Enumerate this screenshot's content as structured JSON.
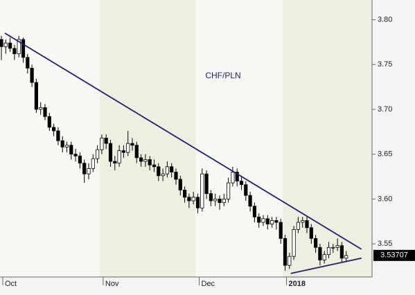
{
  "chart_data": {
    "type": "candlestick",
    "title": "CHF/PLN",
    "categories": [
      "Oct",
      null,
      null,
      null,
      null,
      null,
      null,
      null,
      null,
      null,
      null,
      null,
      null,
      null,
      null,
      null,
      null,
      null,
      null,
      null,
      null,
      null,
      null,
      "Nov",
      null,
      null,
      null,
      null,
      null,
      null,
      null,
      null,
      null,
      null,
      null,
      null,
      null,
      null,
      null,
      null,
      null,
      null,
      null,
      null,
      null,
      "Dec",
      null,
      null,
      null,
      null,
      null,
      null,
      null,
      null,
      null,
      null,
      null,
      null,
      null,
      null,
      null,
      null,
      null,
      null,
      null,
      "2018",
      null,
      null,
      null,
      null,
      null,
      null,
      null,
      null,
      null,
      null,
      null,
      null,
      null,
      null
    ],
    "open": [
      3.778,
      3.77,
      3.774,
      3.768,
      3.762,
      3.778,
      3.758,
      3.746,
      3.73,
      3.7,
      3.702,
      3.692,
      3.68,
      3.676,
      3.665,
      3.658,
      3.66,
      3.65,
      3.648,
      3.64,
      3.628,
      3.634,
      3.645,
      3.655,
      3.668,
      3.662,
      3.642,
      3.64,
      3.654,
      3.652,
      3.662,
      3.66,
      3.646,
      3.642,
      3.644,
      3.638,
      3.636,
      3.626,
      3.628,
      3.636,
      3.63,
      3.622,
      3.61,
      3.602,
      3.598,
      3.602,
      3.59,
      3.628,
      3.606,
      3.598,
      3.6,
      3.596,
      3.6,
      3.618,
      3.63,
      3.62,
      3.616,
      3.604,
      3.592,
      3.58,
      3.574,
      3.578,
      3.572,
      3.576,
      3.574,
      3.556,
      3.526,
      3.536,
      3.566,
      3.574,
      3.576,
      3.568,
      3.556,
      3.546,
      3.532,
      3.538,
      3.546,
      3.546,
      3.548,
      3.534
    ],
    "high": [
      3.782,
      3.778,
      3.78,
      3.772,
      3.782,
      3.78,
      3.762,
      3.75,
      3.734,
      3.708,
      3.706,
      3.696,
      3.684,
      3.68,
      3.67,
      3.664,
      3.664,
      3.656,
      3.652,
      3.644,
      3.64,
      3.65,
      3.66,
      3.672,
      3.672,
      3.666,
      3.648,
      3.66,
      3.66,
      3.676,
      3.668,
      3.664,
      3.65,
      3.65,
      3.648,
      3.644,
      3.64,
      3.634,
      3.642,
      3.64,
      3.634,
      3.626,
      3.614,
      3.606,
      3.608,
      3.606,
      3.634,
      3.632,
      3.61,
      3.606,
      3.604,
      3.606,
      3.624,
      3.636,
      3.634,
      3.626,
      3.62,
      3.608,
      3.596,
      3.584,
      3.582,
      3.582,
      3.58,
      3.58,
      3.578,
      3.56,
      3.54,
      3.57,
      3.58,
      3.58,
      3.58,
      3.572,
      3.56,
      3.55,
      3.542,
      3.552,
      3.55,
      3.556,
      3.552,
      3.542
    ],
    "low": [
      3.755,
      3.762,
      3.764,
      3.755,
      3.758,
      3.752,
      3.74,
      3.725,
      3.696,
      3.694,
      3.688,
      3.676,
      3.67,
      3.66,
      3.652,
      3.652,
      3.644,
      3.642,
      3.634,
      3.618,
      3.622,
      3.63,
      3.64,
      3.65,
      3.656,
      3.636,
      3.632,
      3.636,
      3.646,
      3.648,
      3.654,
      3.64,
      3.636,
      3.636,
      3.632,
      3.63,
      3.62,
      3.62,
      3.624,
      3.624,
      3.616,
      3.604,
      3.596,
      3.59,
      3.594,
      3.584,
      3.586,
      3.6,
      3.592,
      3.592,
      3.588,
      3.592,
      3.596,
      3.614,
      3.614,
      3.61,
      3.598,
      3.586,
      3.574,
      3.568,
      3.57,
      3.566,
      3.568,
      3.566,
      3.55,
      3.52,
      3.522,
      3.532,
      3.562,
      3.568,
      3.562,
      3.55,
      3.54,
      3.526,
      3.528,
      3.534,
      3.54,
      3.542,
      3.53,
      3.53
    ],
    "close": [
      3.77,
      3.774,
      3.768,
      3.762,
      3.778,
      3.758,
      3.746,
      3.73,
      3.7,
      3.702,
      3.692,
      3.68,
      3.676,
      3.665,
      3.658,
      3.66,
      3.65,
      3.648,
      3.64,
      3.628,
      3.634,
      3.645,
      3.655,
      3.668,
      3.662,
      3.642,
      3.64,
      3.654,
      3.652,
      3.662,
      3.66,
      3.646,
      3.642,
      3.644,
      3.638,
      3.636,
      3.626,
      3.628,
      3.636,
      3.63,
      3.622,
      3.61,
      3.602,
      3.598,
      3.602,
      3.59,
      3.628,
      3.606,
      3.598,
      3.6,
      3.596,
      3.6,
      3.618,
      3.63,
      3.62,
      3.616,
      3.604,
      3.592,
      3.58,
      3.574,
      3.578,
      3.572,
      3.576,
      3.574,
      3.556,
      3.526,
      3.536,
      3.566,
      3.574,
      3.576,
      3.568,
      3.556,
      3.546,
      3.532,
      3.538,
      3.546,
      3.546,
      3.548,
      3.534,
      3.537
    ],
    "up_color": "#ffffff",
    "down_color": "#000000",
    "trendline_color": "#1f1f7a",
    "trendlines": [
      {
        "x": [
          0.8,
          82.5
        ],
        "y": [
          3.785,
          3.544
        ]
      },
      {
        "x": [
          66.3,
          82.5
        ],
        "y": [
          3.517,
          3.534
        ]
      }
    ],
    "last_value": 3.53707,
    "ylim": [
      3.513,
      3.822
    ],
    "yticks": [
      {
        "value": 3.55,
        "label": "3.55"
      },
      {
        "value": 3.6,
        "label": "3.60"
      },
      {
        "value": 3.65,
        "label": "3.65"
      },
      {
        "value": 3.7,
        "label": "3.70"
      },
      {
        "value": 3.75,
        "label": "3.75"
      },
      {
        "value": 3.8,
        "label": "3.80"
      }
    ]
  }
}
